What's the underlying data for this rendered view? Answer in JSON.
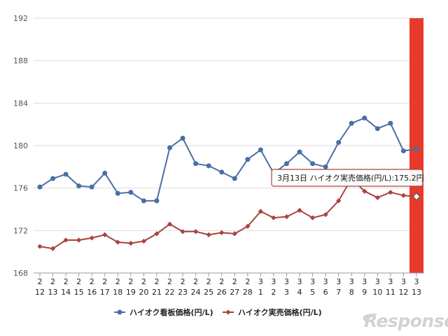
{
  "chart_data": {
    "type": "line",
    "title": "",
    "xlabel": "",
    "ylabel": "",
    "ylim": [
      168,
      192
    ],
    "yticks": [
      168,
      172,
      176,
      180,
      184,
      188,
      192
    ],
    "grid": true,
    "legend_position": "bottom",
    "categories": [
      {
        "month": "2",
        "day": "12"
      },
      {
        "month": "2",
        "day": "13"
      },
      {
        "month": "2",
        "day": "14"
      },
      {
        "month": "2",
        "day": "15"
      },
      {
        "month": "2",
        "day": "16"
      },
      {
        "month": "2",
        "day": "17"
      },
      {
        "month": "2",
        "day": "18"
      },
      {
        "month": "2",
        "day": "19"
      },
      {
        "month": "2",
        "day": "20"
      },
      {
        "month": "2",
        "day": "21"
      },
      {
        "month": "2",
        "day": "22"
      },
      {
        "month": "2",
        "day": "23"
      },
      {
        "month": "2",
        "day": "24"
      },
      {
        "month": "2",
        "day": "25"
      },
      {
        "month": "2",
        "day": "26"
      },
      {
        "month": "2",
        "day": "27"
      },
      {
        "month": "2",
        "day": "28"
      },
      {
        "month": "3",
        "day": "1"
      },
      {
        "month": "3",
        "day": "2"
      },
      {
        "month": "3",
        "day": "3"
      },
      {
        "month": "3",
        "day": "4"
      },
      {
        "month": "3",
        "day": "5"
      },
      {
        "month": "3",
        "day": "6"
      },
      {
        "month": "3",
        "day": "7"
      },
      {
        "month": "3",
        "day": "8"
      },
      {
        "month": "3",
        "day": "9"
      },
      {
        "month": "3",
        "day": "10"
      },
      {
        "month": "3",
        "day": "11"
      },
      {
        "month": "3",
        "day": "12"
      },
      {
        "month": "3",
        "day": "13"
      }
    ],
    "series": [
      {
        "name": "ハイオク看板価格(円/L)",
        "color": "#4a6ea6",
        "marker": "circle",
        "values": [
          176.1,
          176.9,
          177.3,
          176.2,
          176.1,
          177.4,
          175.5,
          175.6,
          174.8,
          174.8,
          179.8,
          180.7,
          178.3,
          178.1,
          177.5,
          176.9,
          178.7,
          179.6,
          177.4,
          178.3,
          179.4,
          178.3,
          178.0,
          180.3,
          182.1,
          182.6,
          181.6,
          182.1,
          179.5,
          179.7
        ]
      },
      {
        "name": "ハイオク実売価格(円/L)",
        "color": "#a8443c",
        "marker": "diamond",
        "values": [
          170.5,
          170.3,
          171.1,
          171.1,
          171.3,
          171.6,
          170.9,
          170.8,
          171.0,
          171.7,
          172.6,
          171.9,
          171.9,
          171.6,
          171.8,
          171.7,
          172.4,
          173.8,
          173.2,
          173.3,
          173.9,
          173.2,
          173.5,
          174.8,
          176.9,
          175.7,
          175.1,
          175.6,
          175.3,
          175.2
        ]
      }
    ],
    "highlight": {
      "index": 29,
      "color": "#e8392a"
    },
    "tooltip": {
      "text": "3月13日 ハイオク実売価格(円/L):175.2円",
      "series_index": 1,
      "point_index": 29
    }
  },
  "watermark": {
    "text": "Response."
  }
}
